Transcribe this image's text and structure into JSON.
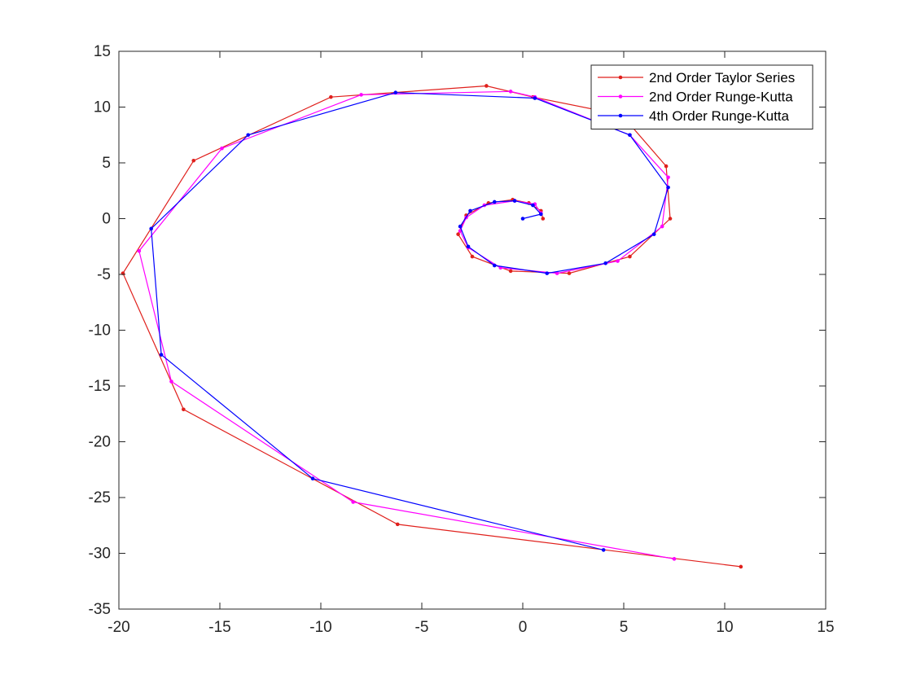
{
  "chart_data": {
    "type": "line",
    "title": "",
    "xlabel": "",
    "ylabel": "",
    "xlim": [
      -20,
      15
    ],
    "ylim": [
      -35,
      15
    ],
    "xticks": [
      -20,
      -15,
      -10,
      -5,
      0,
      5,
      10,
      15
    ],
    "yticks": [
      -35,
      -30,
      -25,
      -20,
      -15,
      -10,
      -5,
      0,
      5,
      10,
      15
    ],
    "grid": false,
    "legend_position": "top-right",
    "series": [
      {
        "name": "2nd Order Taylor Series",
        "color": "#e0201c",
        "marker": "dot",
        "points": [
          [
            1.0,
            0.0
          ],
          [
            0.9,
            0.7
          ],
          [
            0.3,
            1.4
          ],
          [
            -0.5,
            1.7
          ],
          [
            -1.7,
            1.4
          ],
          [
            -2.8,
            0.3
          ],
          [
            -3.2,
            -1.4
          ],
          [
            -2.5,
            -3.4
          ],
          [
            -0.6,
            -4.7
          ],
          [
            2.3,
            -4.9
          ],
          [
            5.3,
            -3.4
          ],
          [
            7.3,
            0.0
          ],
          [
            7.1,
            4.7
          ],
          [
            4.9,
            9.3
          ],
          [
            0.5,
            10.9
          ],
          [
            -1.8,
            11.9
          ],
          [
            -9.5,
            10.9
          ],
          [
            -16.3,
            5.2
          ],
          [
            -19.8,
            -4.9
          ],
          [
            -16.8,
            -17.1
          ],
          [
            -6.2,
            -27.4
          ],
          [
            10.8,
            -31.2
          ]
        ]
      },
      {
        "name": "2nd Order Runge-Kutta",
        "color": "#ff00ff",
        "marker": "dot",
        "points": [
          [
            0.9,
            0.5
          ],
          [
            0.6,
            1.3
          ],
          [
            -0.4,
            1.6
          ],
          [
            -1.9,
            1.2
          ],
          [
            -2.8,
            0.1
          ],
          [
            -3.1,
            -1.1
          ],
          [
            -2.7,
            -2.6
          ],
          [
            -1.1,
            -4.4
          ],
          [
            1.7,
            -4.9
          ],
          [
            4.7,
            -3.8
          ],
          [
            6.9,
            -0.7
          ],
          [
            7.2,
            3.7
          ],
          [
            5.3,
            7.5
          ],
          [
            0.6,
            10.9
          ],
          [
            -0.6,
            11.4
          ],
          [
            -8.0,
            11.1
          ],
          [
            -14.9,
            6.3
          ],
          [
            -19.0,
            -2.9
          ],
          [
            -17.4,
            -14.6
          ],
          [
            -8.4,
            -25.4
          ],
          [
            7.5,
            -30.5
          ]
        ]
      },
      {
        "name": "4th Order Runge-Kutta",
        "color": "#0000ff",
        "marker": "dot",
        "points": [
          [
            0.0,
            0.0
          ],
          [
            0.9,
            0.4
          ],
          [
            0.5,
            1.2
          ],
          [
            -0.4,
            1.6
          ],
          [
            -1.4,
            1.5
          ],
          [
            -2.6,
            0.7
          ],
          [
            -3.1,
            -0.7
          ],
          [
            -2.7,
            -2.5
          ],
          [
            -1.4,
            -4.2
          ],
          [
            1.2,
            -4.9
          ],
          [
            4.1,
            -4.0
          ],
          [
            6.5,
            -1.4
          ],
          [
            7.2,
            2.8
          ],
          [
            5.3,
            7.5
          ],
          [
            0.6,
            10.8
          ],
          [
            -6.3,
            11.3
          ],
          [
            -13.6,
            7.5
          ],
          [
            -18.4,
            -0.9
          ],
          [
            -17.9,
            -12.2
          ],
          [
            -10.4,
            -23.3
          ],
          [
            4.0,
            -29.7
          ]
        ]
      }
    ]
  }
}
